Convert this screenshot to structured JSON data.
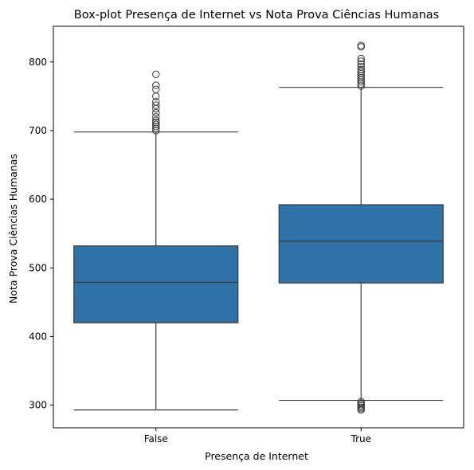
{
  "chart_data": {
    "type": "box",
    "title": "Box-plot Presença de Internet vs Nota Prova Ciências Humanas",
    "xlabel": "Presença de Internet",
    "ylabel": "Nota Prova Ciências Humanas",
    "ylim": [
      267,
      852
    ],
    "yticks": [
      300,
      400,
      500,
      600,
      700,
      800
    ],
    "grid": false,
    "box_color": "#2f73a8",
    "line_color": "#3a3a3a",
    "categories": [
      "False",
      "True"
    ],
    "boxes": [
      {
        "category": "False",
        "q1": 420,
        "median": 479,
        "q3": 532,
        "whisker_low": 293,
        "whisker_high": 698,
        "outliers": [
          700,
          703,
          706,
          709,
          712,
          715,
          720,
          726,
          732,
          737,
          742,
          750,
          760,
          766,
          782
        ]
      },
      {
        "category": "True",
        "q1": 478,
        "median": 539,
        "q3": 592,
        "whisker_low": 307,
        "whisker_high": 763,
        "outliers": [
          293,
          295,
          297,
          299,
          301,
          303,
          305,
          765,
          768,
          771,
          774,
          777,
          780,
          783,
          786,
          789,
          793,
          797,
          801,
          805,
          822,
          824
        ]
      }
    ]
  }
}
